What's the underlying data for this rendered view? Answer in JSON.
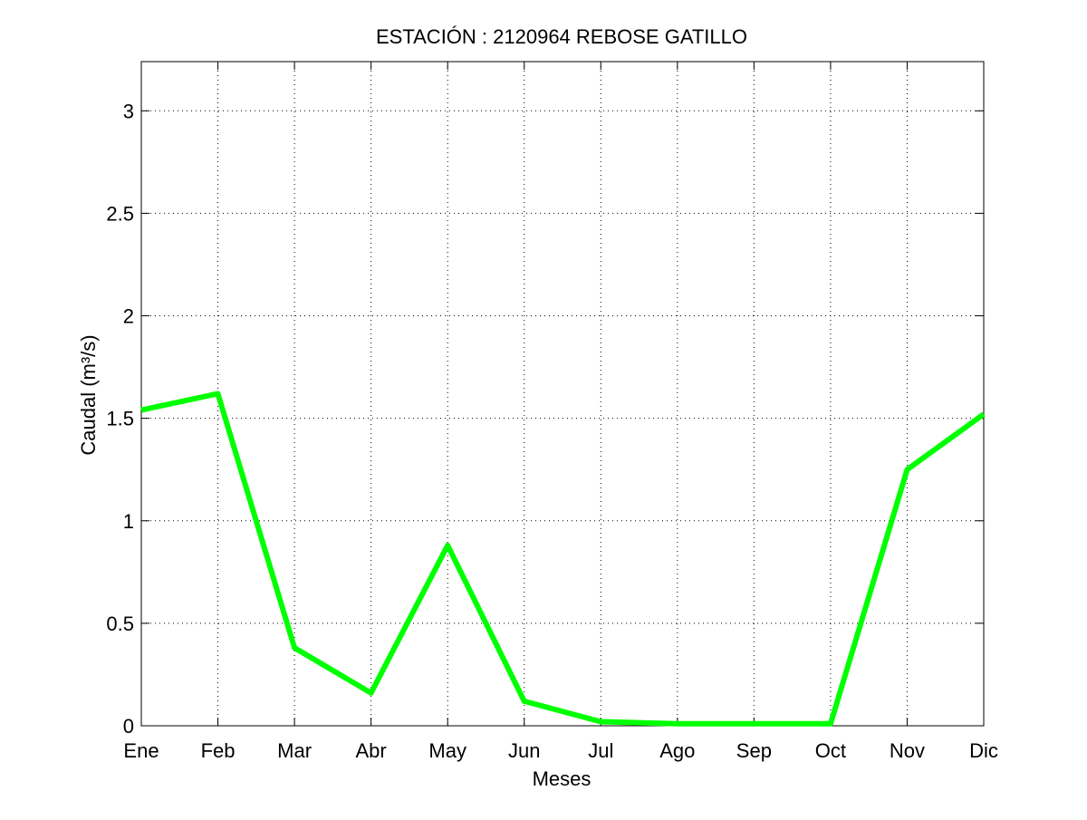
{
  "chart_data": {
    "type": "line",
    "title": "ESTACIÓN :  2120964  REBOSE GATILLO",
    "xlabel": "Meses",
    "ylabel": "Caudal (m³/s)",
    "categories": [
      "Ene",
      "Feb",
      "Mar",
      "Abr",
      "May",
      "Jun",
      "Jul",
      "Ago",
      "Sep",
      "Oct",
      "Nov",
      "Dic"
    ],
    "yticks": [
      "0",
      "0.5",
      "1",
      "1.5",
      "2",
      "2.5",
      "3"
    ],
    "ylim": [
      0,
      3.24
    ],
    "grid": true,
    "series": [
      {
        "color": "#00ff00",
        "values": [
          1.54,
          1.62,
          0.38,
          0.16,
          0.88,
          0.12,
          0.02,
          0.01,
          0.01,
          0.01,
          1.25,
          1.52
        ]
      }
    ]
  }
}
